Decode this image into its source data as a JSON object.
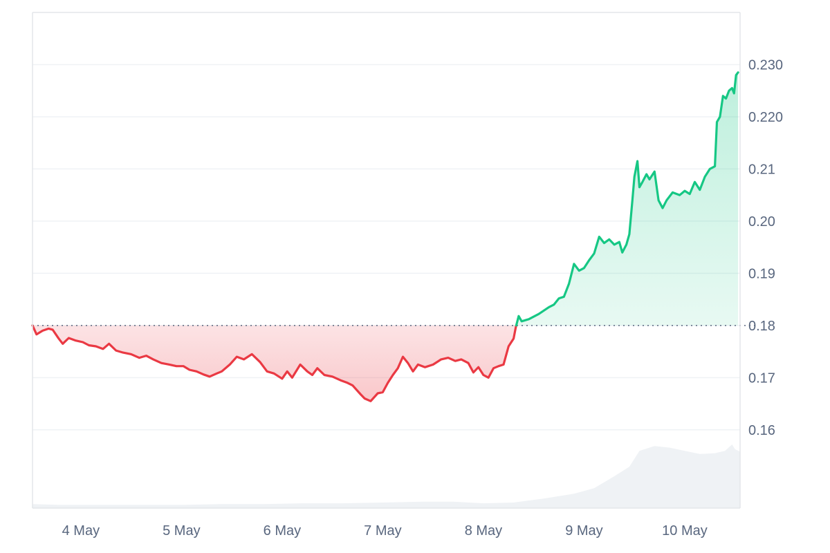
{
  "chart_data": {
    "type": "line",
    "title": "",
    "xlabel": "",
    "ylabel": "",
    "ylim": [
      0.145,
      0.24
    ],
    "grid": true,
    "baseline": 0.18,
    "x_ticks": [
      "4 May",
      "5 May",
      "6 May",
      "7 May",
      "8 May",
      "9 May",
      "10 May"
    ],
    "y_ticks": [
      {
        "value": 0.16,
        "label": "0.16"
      },
      {
        "value": 0.17,
        "label": "0.17"
      },
      {
        "value": 0.18,
        "label": "0.18"
      },
      {
        "value": 0.19,
        "label": "0.19"
      },
      {
        "value": 0.2,
        "label": "0.20"
      },
      {
        "value": 0.21,
        "label": "0.21"
      },
      {
        "value": 0.22,
        "label": "0.220"
      },
      {
        "value": 0.23,
        "label": "0.230"
      }
    ],
    "x_range_days": [
      3.52,
      10.55
    ],
    "series": [
      {
        "kind": "price",
        "points": [
          [
            3.52,
            0.18
          ],
          [
            3.56,
            0.1783
          ],
          [
            3.62,
            0.179
          ],
          [
            3.68,
            0.1794
          ],
          [
            3.72,
            0.1792
          ],
          [
            3.78,
            0.1775
          ],
          [
            3.82,
            0.1765
          ],
          [
            3.88,
            0.1776
          ],
          [
            3.95,
            0.1771
          ],
          [
            4.02,
            0.1768
          ],
          [
            4.08,
            0.1762
          ],
          [
            4.15,
            0.176
          ],
          [
            4.22,
            0.1755
          ],
          [
            4.28,
            0.1765
          ],
          [
            4.35,
            0.1752
          ],
          [
            4.42,
            0.1748
          ],
          [
            4.5,
            0.1745
          ],
          [
            4.58,
            0.1738
          ],
          [
            4.65,
            0.1742
          ],
          [
            4.72,
            0.1735
          ],
          [
            4.8,
            0.1728
          ],
          [
            4.88,
            0.1725
          ],
          [
            4.95,
            0.1722
          ],
          [
            5.02,
            0.1722
          ],
          [
            5.08,
            0.1715
          ],
          [
            5.15,
            0.1712
          ],
          [
            5.22,
            0.1706
          ],
          [
            5.28,
            0.1702
          ],
          [
            5.35,
            0.1708
          ],
          [
            5.4,
            0.1712
          ],
          [
            5.48,
            0.1725
          ],
          [
            5.55,
            0.174
          ],
          [
            5.62,
            0.1735
          ],
          [
            5.7,
            0.1745
          ],
          [
            5.78,
            0.173
          ],
          [
            5.85,
            0.1712
          ],
          [
            5.92,
            0.1708
          ],
          [
            6.0,
            0.1698
          ],
          [
            6.05,
            0.1712
          ],
          [
            6.1,
            0.17
          ],
          [
            6.18,
            0.1725
          ],
          [
            6.25,
            0.1712
          ],
          [
            6.3,
            0.1705
          ],
          [
            6.35,
            0.1718
          ],
          [
            6.42,
            0.1705
          ],
          [
            6.5,
            0.1702
          ],
          [
            6.58,
            0.1695
          ],
          [
            6.65,
            0.169
          ],
          [
            6.7,
            0.1685
          ],
          [
            6.78,
            0.1668
          ],
          [
            6.82,
            0.166
          ],
          [
            6.88,
            0.1655
          ],
          [
            6.95,
            0.167
          ],
          [
            7.0,
            0.1672
          ],
          [
            7.05,
            0.169
          ],
          [
            7.1,
            0.1705
          ],
          [
            7.15,
            0.1718
          ],
          [
            7.2,
            0.174
          ],
          [
            7.25,
            0.1728
          ],
          [
            7.3,
            0.1712
          ],
          [
            7.35,
            0.1725
          ],
          [
            7.42,
            0.172
          ],
          [
            7.5,
            0.1725
          ],
          [
            7.58,
            0.1735
          ],
          [
            7.65,
            0.1738
          ],
          [
            7.72,
            0.1732
          ],
          [
            7.78,
            0.1735
          ],
          [
            7.85,
            0.1728
          ],
          [
            7.9,
            0.171
          ],
          [
            7.95,
            0.172
          ],
          [
            8.0,
            0.1705
          ],
          [
            8.05,
            0.17
          ],
          [
            8.1,
            0.1718
          ],
          [
            8.15,
            0.1722
          ],
          [
            8.2,
            0.1725
          ],
          [
            8.25,
            0.176
          ],
          [
            8.3,
            0.1775
          ],
          [
            8.32,
            0.1795
          ],
          [
            8.35,
            0.1818
          ],
          [
            8.38,
            0.1808
          ],
          [
            8.45,
            0.1812
          ],
          [
            8.55,
            0.1822
          ],
          [
            8.65,
            0.1835
          ],
          [
            8.7,
            0.184
          ],
          [
            8.75,
            0.1852
          ],
          [
            8.8,
            0.1855
          ],
          [
            8.85,
            0.188
          ],
          [
            8.9,
            0.1918
          ],
          [
            8.95,
            0.1905
          ],
          [
            9.0,
            0.191
          ],
          [
            9.05,
            0.1925
          ],
          [
            9.1,
            0.1938
          ],
          [
            9.15,
            0.197
          ],
          [
            9.2,
            0.1958
          ],
          [
            9.25,
            0.1965
          ],
          [
            9.3,
            0.1955
          ],
          [
            9.35,
            0.196
          ],
          [
            9.38,
            0.194
          ],
          [
            9.42,
            0.1955
          ],
          [
            9.45,
            0.1975
          ],
          [
            9.48,
            0.204
          ],
          [
            9.5,
            0.2085
          ],
          [
            9.53,
            0.2115
          ],
          [
            9.55,
            0.2065
          ],
          [
            9.58,
            0.2075
          ],
          [
            9.62,
            0.209
          ],
          [
            9.65,
            0.208
          ],
          [
            9.7,
            0.2095
          ],
          [
            9.74,
            0.204
          ],
          [
            9.78,
            0.2025
          ],
          [
            9.82,
            0.204
          ],
          [
            9.88,
            0.2055
          ],
          [
            9.95,
            0.205
          ],
          [
            10.0,
            0.2058
          ],
          [
            10.05,
            0.2052
          ],
          [
            10.1,
            0.2075
          ],
          [
            10.15,
            0.206
          ],
          [
            10.2,
            0.2085
          ],
          [
            10.25,
            0.21
          ],
          [
            10.3,
            0.2105
          ],
          [
            10.32,
            0.219
          ],
          [
            10.35,
            0.22
          ],
          [
            10.38,
            0.224
          ],
          [
            10.41,
            0.2235
          ],
          [
            10.44,
            0.225
          ],
          [
            10.47,
            0.2255
          ],
          [
            10.49,
            0.2245
          ],
          [
            10.51,
            0.228
          ],
          [
            10.53,
            0.2285
          ]
        ]
      },
      {
        "kind": "volume",
        "points": [
          [
            3.52,
            0.05
          ],
          [
            3.8,
            0.04
          ],
          [
            4.2,
            0.04
          ],
          [
            4.6,
            0.04
          ],
          [
            5.0,
            0.04
          ],
          [
            5.4,
            0.05
          ],
          [
            5.8,
            0.05
          ],
          [
            6.2,
            0.06
          ],
          [
            6.6,
            0.06
          ],
          [
            7.0,
            0.07
          ],
          [
            7.4,
            0.08
          ],
          [
            7.7,
            0.08
          ],
          [
            8.0,
            0.06
          ],
          [
            8.3,
            0.07
          ],
          [
            8.6,
            0.12
          ],
          [
            8.9,
            0.18
          ],
          [
            9.1,
            0.25
          ],
          [
            9.3,
            0.4
          ],
          [
            9.45,
            0.52
          ],
          [
            9.55,
            0.72
          ],
          [
            9.7,
            0.78
          ],
          [
            9.85,
            0.76
          ],
          [
            10.0,
            0.72
          ],
          [
            10.15,
            0.68
          ],
          [
            10.3,
            0.69
          ],
          [
            10.4,
            0.72
          ],
          [
            10.47,
            0.8
          ],
          [
            10.5,
            0.74
          ],
          [
            10.55,
            0.71
          ]
        ]
      }
    ],
    "colors": {
      "up_line": "#16c784",
      "up_fill": "#16c784",
      "down_line": "#ea3943",
      "down_fill": "#ea3943",
      "grid": "#eff2f5",
      "axis_text": "#58667e",
      "volume": "#eff2f5",
      "baseline": "#58667e"
    }
  }
}
